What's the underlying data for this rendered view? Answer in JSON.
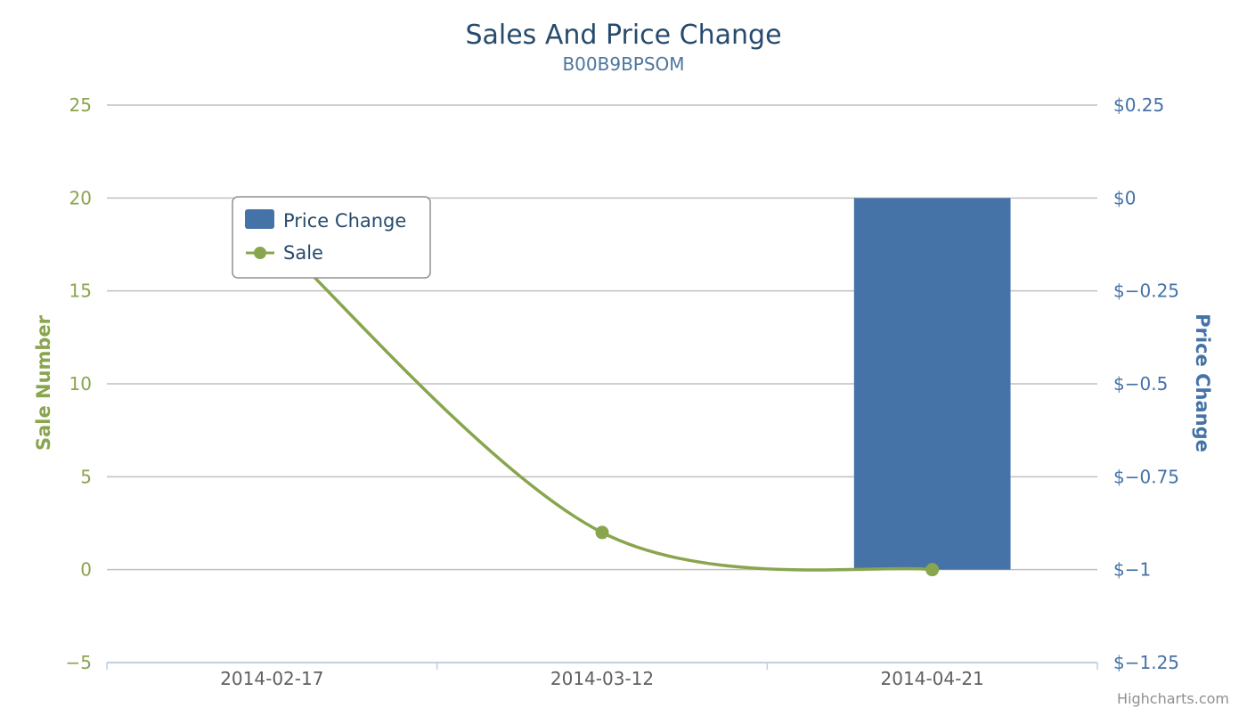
{
  "chart_data": {
    "type": "bar",
    "title": "Sales And Price Change",
    "subtitle": "B00B9BPSOM",
    "categories": [
      "2014-02-17",
      "2014-03-12",
      "2014-04-21"
    ],
    "y_left": {
      "label": "Sale Number",
      "ylim": [
        -5,
        25
      ],
      "ticks": [
        -5,
        0,
        5,
        10,
        15,
        20,
        25
      ],
      "tick_labels": [
        "−5",
        "0",
        "5",
        "10",
        "15",
        "20",
        "25"
      ],
      "color": "#89a54e"
    },
    "y_right": {
      "label": "Price Change",
      "ylim": [
        -1.25,
        0.25
      ],
      "ticks": [
        -1.25,
        -1,
        -0.75,
        -0.5,
        -0.25,
        0,
        0.25
      ],
      "tick_labels": [
        "$−1.25",
        "$−1",
        "$−0.75",
        "$−0.5",
        "$−0.25",
        "$0",
        "$0.25"
      ],
      "color": "#4572a7"
    },
    "series": [
      {
        "name": "Price Change",
        "type": "column",
        "axis": "right",
        "color": "#4572a7",
        "values": [
          null,
          null,
          -1
        ]
      },
      {
        "name": "Sale",
        "type": "spline",
        "axis": "left",
        "color": "#89a54e",
        "values": [
          18,
          2,
          0
        ]
      }
    ],
    "legend": {
      "position": "top-left",
      "items": [
        "Price Change",
        "Sale"
      ]
    },
    "grid": true
  },
  "credits": "Highcharts.com",
  "colors": {
    "title": "#274b6d",
    "subtitle": "#4d759e",
    "axis_label": "#606060",
    "gridline": "#c0c0c0",
    "axis_line": "#c0d0e0",
    "credits": "#909090"
  }
}
